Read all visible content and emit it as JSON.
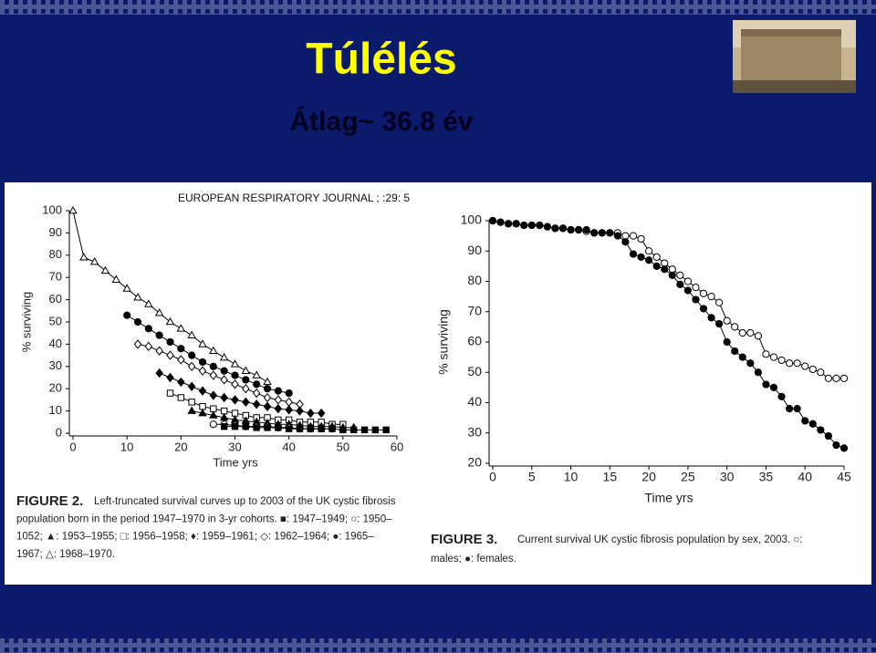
{
  "slide": {
    "title": "Túlélés",
    "subtitle": "Átlag~ 36.8 év",
    "source": "EUROPEAN RESPIRATORY JOURNAL ; :29: 5"
  },
  "chart_data": [
    {
      "type": "line",
      "x_label": "Time yrs",
      "y_label": "% surviving",
      "xlim": [
        0,
        60
      ],
      "xticks": [
        0,
        10,
        20,
        30,
        40,
        50,
        60
      ],
      "ylim": [
        0,
        100
      ],
      "yticks": [
        0,
        10,
        20,
        30,
        40,
        50,
        60,
        70,
        80,
        90,
        100
      ],
      "series": [
        {
          "marker": "triangle-open",
          "color": "#000000",
          "x": [
            0,
            2,
            4,
            6,
            8,
            10,
            12,
            14,
            16,
            18,
            20,
            22,
            24,
            26,
            28,
            30,
            32,
            34,
            36
          ],
          "values": [
            100,
            79,
            77,
            73,
            69,
            65,
            61,
            58,
            54,
            50,
            47,
            44,
            40,
            37,
            34,
            31,
            28,
            26,
            23
          ]
        },
        {
          "marker": "circle-filled",
          "color": "#000000",
          "x": [
            10,
            12,
            14,
            16,
            18,
            20,
            22,
            24,
            26,
            28,
            30,
            32,
            34,
            36,
            38,
            40
          ],
          "values": [
            53,
            50,
            47,
            44,
            41,
            38,
            35,
            32,
            30,
            28,
            26,
            24,
            22,
            20,
            19,
            18
          ]
        },
        {
          "marker": "diamond-open",
          "color": "#000000",
          "x": [
            12,
            14,
            16,
            18,
            20,
            22,
            24,
            26,
            28,
            30,
            32,
            34,
            36,
            38,
            40,
            42
          ],
          "values": [
            40,
            39,
            37,
            35,
            33,
            30,
            28,
            26,
            24,
            22,
            20,
            18,
            16,
            15,
            14,
            13
          ]
        },
        {
          "marker": "diamond-filled",
          "color": "#000000",
          "x": [
            16,
            18,
            20,
            22,
            24,
            26,
            28,
            30,
            32,
            34,
            36,
            38,
            40,
            42,
            44,
            46
          ],
          "values": [
            27,
            25,
            23,
            21,
            19,
            17,
            16,
            15,
            14,
            13,
            12,
            11,
            10.5,
            10,
            9,
            9
          ]
        },
        {
          "marker": "square-open",
          "color": "#000000",
          "x": [
            18,
            20,
            22,
            24,
            26,
            28,
            30,
            32,
            34,
            36,
            38,
            40,
            42,
            44,
            46,
            48,
            50
          ],
          "values": [
            18,
            16,
            14,
            12,
            11,
            10,
            9,
            8,
            7,
            7,
            6,
            6,
            5,
            5,
            5,
            4,
            4
          ]
        },
        {
          "marker": "triangle-filled",
          "color": "#000000",
          "x": [
            22,
            24,
            26,
            28,
            30,
            32,
            34,
            36,
            38,
            40,
            42,
            44,
            46,
            48,
            50,
            52
          ],
          "values": [
            10,
            9,
            8,
            7,
            6,
            5.5,
            5,
            4.5,
            4,
            4,
            3.5,
            3,
            3,
            3,
            2.5,
            2.5
          ]
        },
        {
          "marker": "circle-open",
          "color": "#000000",
          "x": [
            26,
            28,
            30,
            32,
            34,
            36,
            38,
            40,
            42,
            44,
            46,
            48
          ],
          "values": [
            4,
            4,
            3.5,
            3,
            3,
            3,
            2.5,
            2.5,
            2,
            2,
            2,
            2
          ]
        },
        {
          "marker": "square-filled",
          "color": "#000000",
          "x": [
            28,
            30,
            32,
            34,
            36,
            38,
            40,
            42,
            44,
            46,
            48,
            50,
            52,
            54,
            56,
            58
          ],
          "values": [
            3,
            3,
            3,
            2.5,
            2.5,
            2.5,
            2,
            2,
            2,
            2,
            2,
            1.5,
            1.5,
            1.5,
            1.5,
            1.5
          ]
        }
      ],
      "caption": {
        "label": "FIGURE 2.",
        "lines": [
          "Left-truncated survival curves up to 2003 of the UK cystic fibrosis",
          "population born in the period 1947–1970 in 3-yr cohorts. ■: 1947–1949; ○: 1950–",
          "1052; ▲: 1953–1955; □: 1956–1958; ♦: 1959–1961; ◇: 1962–1964; ●: 1965–",
          "1967; △: 1968–1970."
        ]
      }
    },
    {
      "type": "line",
      "x_label": "Time yrs",
      "y_label": "% surviving",
      "xlim": [
        0,
        45
      ],
      "xticks": [
        0,
        5,
        10,
        15,
        20,
        25,
        30,
        35,
        40,
        45
      ],
      "ylim": [
        20,
        100
      ],
      "yticks": [
        20,
        30,
        40,
        50,
        60,
        70,
        80,
        90,
        100
      ],
      "series": [
        {
          "marker": "circle-open",
          "color": "#000000",
          "x": [
            0,
            1,
            2,
            3,
            4,
            5,
            6,
            7,
            8,
            9,
            10,
            11,
            12,
            13,
            14,
            15,
            16,
            17,
            18,
            19,
            20,
            21,
            22,
            23,
            24,
            25,
            26,
            27,
            28,
            29,
            30,
            31,
            32,
            33,
            34,
            35,
            36,
            37,
            38,
            39,
            40,
            41,
            42,
            43,
            44,
            45
          ],
          "values": [
            100,
            99.5,
            99,
            99,
            98.5,
            98.5,
            98.5,
            98,
            97.5,
            97.5,
            97,
            97,
            96.5,
            96,
            96,
            96,
            96,
            95,
            95,
            94,
            90,
            88,
            86,
            84,
            82,
            80,
            78,
            76,
            75,
            73,
            67,
            65,
            63,
            63,
            62,
            56,
            55,
            54,
            53,
            53,
            52,
            51,
            50,
            48,
            48,
            48
          ]
        },
        {
          "marker": "circle-filled",
          "color": "#000000",
          "x": [
            0,
            1,
            2,
            3,
            4,
            5,
            6,
            7,
            8,
            9,
            10,
            11,
            12,
            13,
            14,
            15,
            16,
            17,
            18,
            19,
            20,
            21,
            22,
            23,
            24,
            25,
            26,
            27,
            28,
            29,
            30,
            31,
            32,
            33,
            34,
            35,
            36,
            37,
            38,
            39,
            40,
            41,
            42,
            43,
            44,
            45
          ],
          "values": [
            100,
            99.5,
            99,
            99,
            98.5,
            98.5,
            98.5,
            98,
            97.5,
            97.5,
            97,
            97,
            97,
            96,
            96,
            96,
            95,
            93,
            89,
            88,
            87,
            85,
            84,
            82,
            79,
            77,
            74,
            71,
            68,
            66,
            60,
            57,
            55,
            53,
            50,
            46,
            45,
            42,
            38,
            38,
            34,
            33,
            31,
            29,
            26,
            25
          ]
        }
      ],
      "caption": {
        "label": "FIGURE 3.",
        "lines": [
          "Current survival UK cystic fibrosis population by sex, 2003. ○:",
          "males; ●: females."
        ]
      }
    }
  ]
}
